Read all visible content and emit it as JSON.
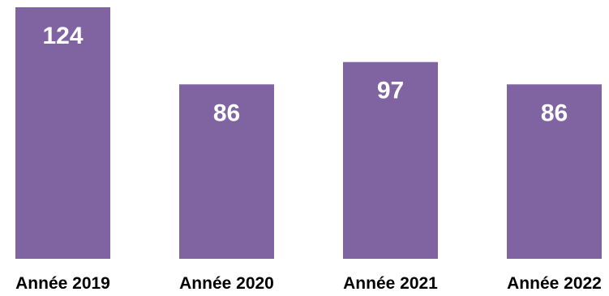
{
  "chart_data": {
    "type": "bar",
    "categories": [
      "Année 2019",
      "Année 2020",
      "Année 2021",
      "Année 2022"
    ],
    "values": [
      124,
      86,
      97,
      86
    ],
    "title": "",
    "xlabel": "",
    "ylabel": "",
    "ylim": [
      0,
      124
    ],
    "grid": false,
    "bar_color": "#8064a2",
    "data_label_color": "#ffffff"
  }
}
